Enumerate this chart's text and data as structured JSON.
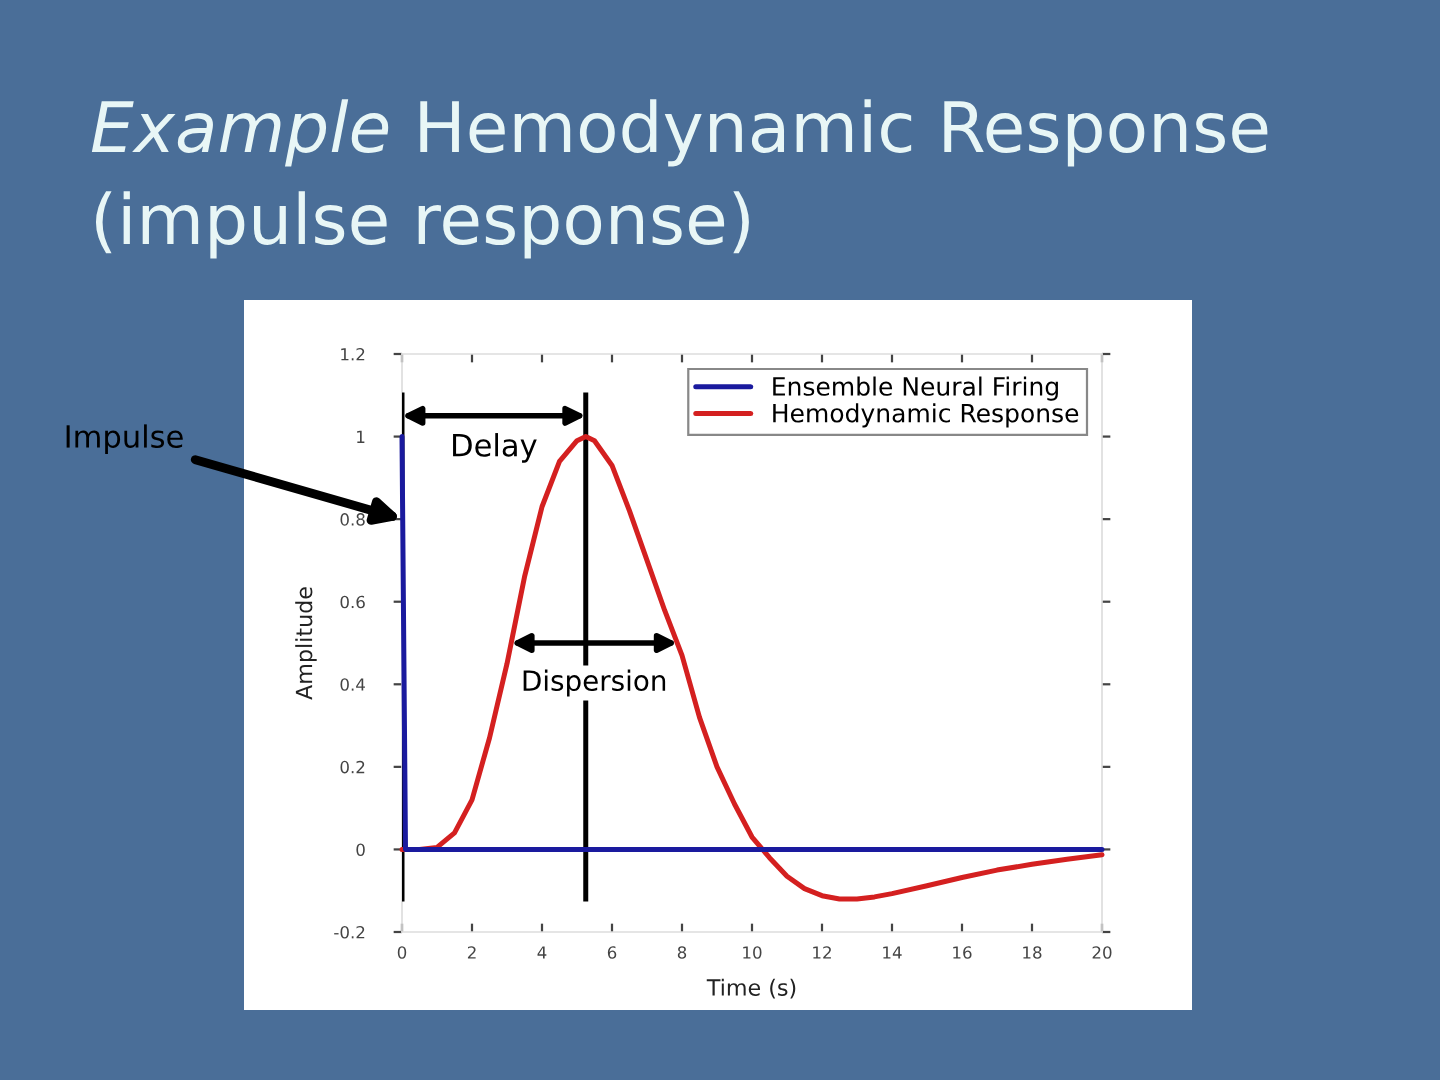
{
  "chart_data": {
    "type": "line",
    "title": "Example Hemodynamic Response (impulse response)",
    "xlabel": "Time (s)",
    "ylabel": "Amplitude",
    "series": [
      {
        "name": "Ensemble Neural Firing",
        "color": "#1a1a9e",
        "x": [
          0,
          0.1,
          20
        ],
        "values": [
          1,
          0,
          0
        ]
      },
      {
        "name": "Hemodynamic Response",
        "color": "#d42020",
        "x": [
          0,
          0.5,
          1,
          1.5,
          2,
          2.5,
          3,
          3.5,
          4,
          4.5,
          5,
          5.25,
          5.5,
          6,
          6.5,
          7,
          7.5,
          8,
          8.5,
          9,
          9.5,
          10,
          10.3,
          10.5,
          11,
          11.5,
          12,
          12.5,
          13,
          13.5,
          14,
          15,
          16,
          17,
          18,
          19,
          20
        ],
        "values": [
          0,
          0,
          0.005,
          0.04,
          0.12,
          0.27,
          0.45,
          0.66,
          0.83,
          0.94,
          0.99,
          1.0,
          0.99,
          0.93,
          0.82,
          0.7,
          0.58,
          0.47,
          0.32,
          0.2,
          0.11,
          0.03,
          0,
          -0.02,
          -0.065,
          -0.095,
          -0.112,
          -0.12,
          -0.12,
          -0.115,
          -0.107,
          -0.088,
          -0.068,
          -0.05,
          -0.036,
          -0.024,
          -0.013
        ]
      }
    ],
    "xlim": [
      0,
      20
    ],
    "ylim": [
      -0.2,
      1.2
    ],
    "xticks": [
      0,
      2,
      4,
      6,
      8,
      10,
      12,
      14,
      16,
      18,
      20
    ],
    "yticks": [
      -0.2,
      0,
      0.2,
      0.4,
      0.6,
      0.8,
      1,
      1.2
    ],
    "ref_lines": [
      {
        "axis": "x",
        "value": 0,
        "color": "#000000"
      },
      {
        "axis": "x",
        "value": 5.25,
        "color": "#000000"
      }
    ],
    "annotations": [
      {
        "text": "Impulse",
        "x": 0,
        "y": 0.8
      },
      "Delay",
      "Dispersion"
    ],
    "legend": "top right",
    "grid": false,
    "marker": "none",
    "line_style": "solid"
  }
}
